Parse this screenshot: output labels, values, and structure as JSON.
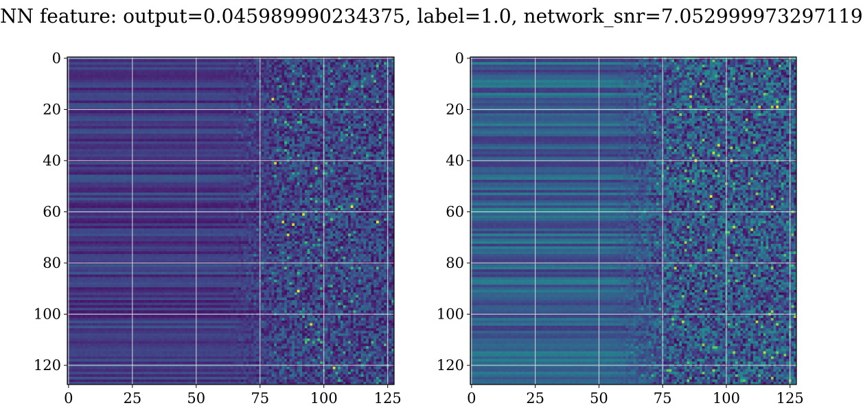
{
  "title": "NN feature: output=0.045989990234375, label=1.0, network_snr=7.052999973297119",
  "colors": {
    "colormap": "viridis",
    "grid": "#d9d9d9",
    "axes": "#000000",
    "background": "#ffffff"
  },
  "chart_data": [
    {
      "type": "heatmap",
      "panel": "left",
      "colormap": "viridis",
      "shape": [
        128,
        128
      ],
      "xlim": [
        -0.5,
        127.5
      ],
      "ylim": [
        127.5,
        -0.5
      ],
      "x_ticks": [
        0,
        25,
        50,
        75,
        100,
        125
      ],
      "y_ticks": [
        0,
        20,
        40,
        60,
        80,
        100,
        120
      ],
      "grid": true,
      "description_of_values": "rows have smooth horizontal stripes in low columns (0-~70); columns ~75-127 are noisy with scattered bright pixels",
      "noise_start_col": 75,
      "hot_spots": [
        [
          80,
          16
        ],
        [
          92,
          61
        ],
        [
          111,
          58
        ],
        [
          84,
          64
        ],
        [
          88,
          65
        ],
        [
          121,
          64
        ],
        [
          86,
          69
        ],
        [
          90,
          91
        ],
        [
          95,
          104
        ],
        [
          104,
          121
        ],
        [
          81,
          41
        ],
        [
          97,
          43
        ]
      ]
    },
    {
      "type": "heatmap",
      "panel": "right",
      "colormap": "viridis",
      "shape": [
        128,
        128
      ],
      "xlim": [
        -0.5,
        127.5
      ],
      "ylim": [
        127.5,
        -0.5
      ],
      "x_ticks": [
        0,
        25,
        50,
        75,
        100,
        125
      ],
      "y_ticks": [
        0,
        20,
        40,
        60,
        80,
        100,
        120
      ],
      "grid": true,
      "description_of_values": "brighter teal horizontal stripes across full width; columns ~70-127 noisy with bright yellow-green streaks",
      "noise_start_col": 70,
      "hot_spots": [
        [
          88,
          40
        ],
        [
          102,
          40
        ],
        [
          113,
          19
        ],
        [
          120,
          19
        ],
        [
          86,
          15
        ],
        [
          97,
          34
        ],
        [
          95,
          37
        ],
        [
          103,
          66
        ],
        [
          110,
          67
        ],
        [
          80,
          82
        ],
        [
          83,
          103
        ],
        [
          112,
          103
        ],
        [
          115,
          115
        ],
        [
          94,
          54
        ],
        [
          118,
          58
        ]
      ]
    }
  ]
}
